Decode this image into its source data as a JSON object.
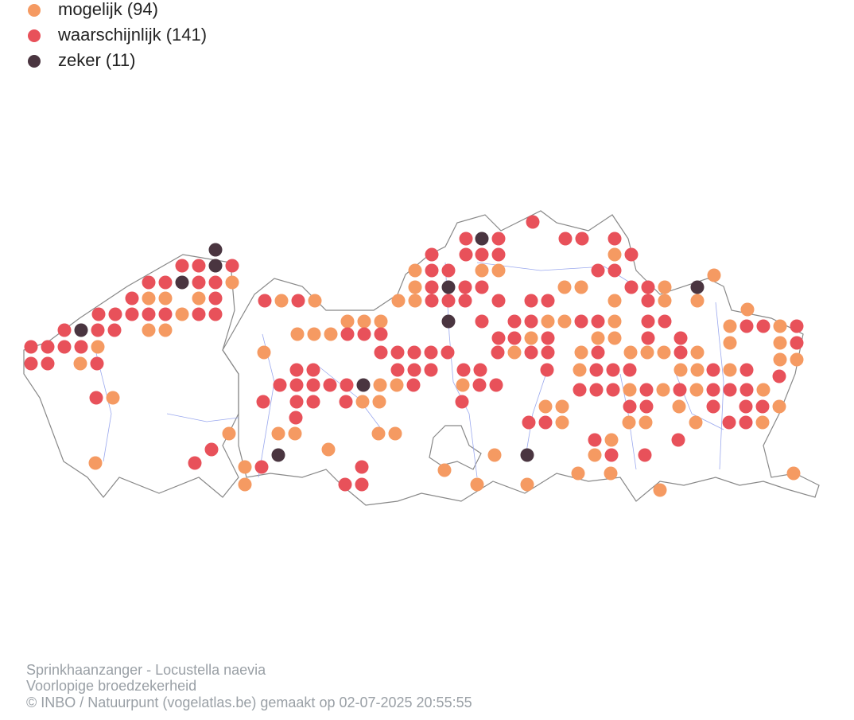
{
  "legend": [
    {
      "label": "mogelijk (94)",
      "color": "#f59a62"
    },
    {
      "label": "waarschijnlijk (141)",
      "color": "#e8515a"
    },
    {
      "label": "zeker (11)",
      "color": "#4a3540"
    }
  ],
  "footer": [
    "Sprinkhaanzanger - Locustella naevia",
    "Voorlopige broedzekerheid",
    "© INBO / Natuurpunt (vogelatlas.be) gemaakt op 02-07-2025 20:55:55"
  ]
}
